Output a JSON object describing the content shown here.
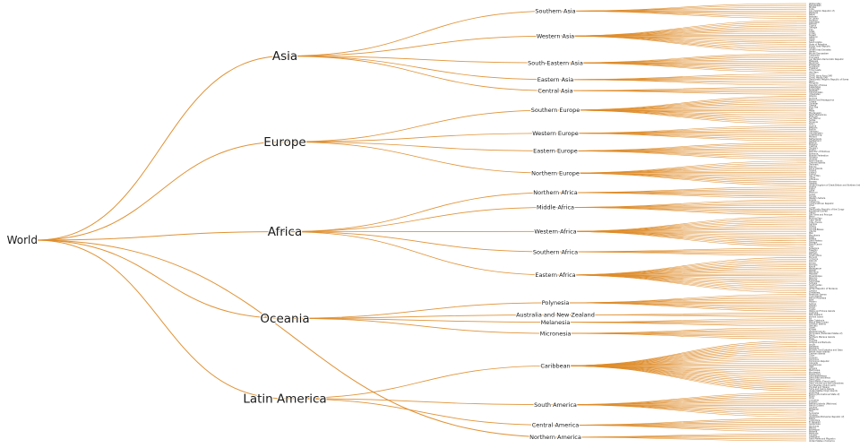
{
  "chart_data": {
    "type": "tree",
    "subtype": "dendrogram-left-to-right",
    "layout_hints": {
      "orientation": "horizontal",
      "levels": [
        "world",
        "continent-region",
        "subregion",
        "country"
      ],
      "leaves_aligned_right": true,
      "grid": false,
      "legend": false
    },
    "colors": {
      "link": "#de8c2a",
      "label": "#1a1a1a",
      "leaf_label": "#3a3a3a",
      "background": "#ffffff"
    },
    "root": {
      "name": "World",
      "children": [
        {
          "name": "Asia",
          "children": [
            {
              "name": "Southern Asia",
              "children": [
                "Afghanistan",
                "Bangladesh",
                "Bhutan",
                "India",
                "Iran (Islamic Republic of)",
                "Maldives",
                "Nepal",
                "Pakistan",
                "Sri Lanka"
              ]
            },
            {
              "name": "Western Asia",
              "children": [
                "Armenia",
                "Azerbaijan",
                "Bahrain",
                "Cyprus",
                "Georgia",
                "Iraq",
                "Israel",
                "Jordan",
                "Kuwait",
                "Lebanon",
                "Oman",
                "Qatar",
                "Saudi Arabia",
                "State of Palestine",
                "Syrian Arab Republic",
                "Turkey",
                "United Arab Emirates",
                "Yemen"
              ]
            },
            {
              "name": "South-Eastern Asia",
              "children": [
                "Brunei Darussalam",
                "Cambodia",
                "Indonesia",
                "Lao People's Democratic Republic",
                "Malaysia",
                "Myanmar",
                "Philippines",
                "Singapore",
                "Thailand",
                "Timor-Leste",
                "Viet Nam"
              ]
            },
            {
              "name": "Eastern Asia",
              "children": [
                "China",
                "China, Hong Kong SAR",
                "China, Macao SAR",
                "Democratic People's Republic of Korea",
                "Japan",
                "Mongolia",
                "Republic of Korea"
              ]
            },
            {
              "name": "Central Asia",
              "children": [
                "Kazakhstan",
                "Kyrgyzstan",
                "Tajikistan",
                "Turkmenistan",
                "Uzbekistan"
              ]
            }
          ]
        },
        {
          "name": "Europe",
          "children": [
            {
              "name": "Southern Europe",
              "children": [
                "Albania",
                "Andorra",
                "Bosnia and Herzegovina",
                "Croatia",
                "Gibraltar",
                "Greece",
                "Holy See",
                "Italy",
                "Malta",
                "Montenegro",
                "North Macedonia",
                "Portugal",
                "San Marino",
                "Serbia",
                "Slovenia",
                "Spain"
              ]
            },
            {
              "name": "Western Europe",
              "children": [
                "Austria",
                "Belgium",
                "France",
                "Germany",
                "Liechtenstein",
                "Luxembourg",
                "Monaco",
                "Netherlands",
                "Switzerland"
              ]
            },
            {
              "name": "Eastern Europe",
              "children": [
                "Belarus",
                "Bulgaria",
                "Czechia",
                "Hungary",
                "Poland",
                "Republic of Moldova",
                "Romania",
                "Russian Federation",
                "Slovakia",
                "Ukraine"
              ]
            },
            {
              "name": "Northern Europe",
              "children": [
                "Åland Islands",
                "Channel Islands",
                "Denmark",
                "Estonia",
                "Faroe Islands",
                "Finland",
                "Iceland",
                "Ireland",
                "Isle of Man",
                "Latvia",
                "Lithuania",
                "Norway",
                "Sweden",
                "United Kingdom of Great Britain and Northern Ireland"
              ]
            }
          ]
        },
        {
          "name": "Africa",
          "children": [
            {
              "name": "Northern Africa",
              "children": [
                "Algeria",
                "Egypt",
                "Libya",
                "Morocco",
                "Sudan",
                "Tunisia",
                "Western Sahara"
              ]
            },
            {
              "name": "Middle Africa",
              "children": [
                "Angola",
                "Cameroon",
                "Central African Republic",
                "Chad",
                "Congo",
                "Democratic Republic of the Congo",
                "Equatorial Guinea",
                "Gabon",
                "Sao Tome and Principe"
              ]
            },
            {
              "name": "Western Africa",
              "children": [
                "Benin",
                "Burkina Faso",
                "Cabo Verde",
                "Côte d'Ivoire",
                "Gambia",
                "Ghana",
                "Guinea",
                "Guinea-Bissau",
                "Liberia",
                "Mali",
                "Mauritania",
                "Niger",
                "Nigeria",
                "Saint Helena",
                "Senegal",
                "Sierra Leone",
                "Togo"
              ]
            },
            {
              "name": "Southern Africa",
              "children": [
                "Botswana",
                "Eswatini",
                "Lesotho",
                "Namibia",
                "South Africa"
              ]
            },
            {
              "name": "Eastern Africa",
              "children": [
                "Burundi",
                "Comoros",
                "Djibouti",
                "Eritrea",
                "Ethiopia",
                "Kenya",
                "Madagascar",
                "Malawi",
                "Mauritius",
                "Mayotte",
                "Mozambique",
                "Réunion",
                "Rwanda",
                "Seychelles",
                "Somalia",
                "South Sudan",
                "Uganda",
                "United Republic of Tanzania",
                "Zambia",
                "Zimbabwe"
              ]
            }
          ]
        },
        {
          "name": "Oceania",
          "children": [
            {
              "name": "Polynesia",
              "children": [
                "American Samoa",
                "Cook Islands",
                "French Polynesia",
                "Niue",
                "Pitcairn",
                "Samoa",
                "Tokelau",
                "Tonga",
                "Tuvalu",
                "Wallis and Futuna Islands"
              ]
            },
            {
              "name": "Australia and New Zealand",
              "children": [
                "Australia",
                "New Zealand",
                "Norfolk Island"
              ]
            },
            {
              "name": "Melanesia",
              "children": [
                "Fiji",
                "New Caledonia",
                "Papua New Guinea",
                "Solomon Islands",
                "Vanuatu"
              ]
            },
            {
              "name": "Micronesia",
              "children": [
                "Guam",
                "Kiribati",
                "Marshall Islands",
                "Micronesia (Federated States of)",
                "Nauru",
                "Northern Mariana Islands",
                "Palau"
              ]
            }
          ]
        },
        {
          "name": "Latin America",
          "children": [
            {
              "name": "Caribbean",
              "children": [
                "Anguilla",
                "Antigua and Barbuda",
                "Aruba",
                "Bahamas",
                "Barbados",
                "Bonaire, Sint Eustatius and Saba",
                "British Virgin Islands",
                "Cayman Islands",
                "Cuba",
                "Curaçao",
                "Dominica",
                "Dominican Republic",
                "Grenada",
                "Guadeloupe",
                "Haiti",
                "Jamaica",
                "Martinique",
                "Montserrat",
                "Puerto Rico",
                "Saint Barthélemy",
                "Saint Kitts and Nevis",
                "Saint Lucia",
                "Saint Martin (French part)",
                "Saint Vincent and the Grenadines",
                "Sint Maarten (Dutch part)",
                "Trinidad and Tobago",
                "Turks and Caicos Islands",
                "United States Virgin Islands"
              ]
            },
            {
              "name": "South America",
              "children": [
                "Argentina",
                "Bolivia (Plurinational State of)",
                "Brazil",
                "Chile",
                "Colombia",
                "Ecuador",
                "Falkland Islands (Malvinas)",
                "French Guiana",
                "Guyana",
                "Paraguay",
                "Peru",
                "Suriname",
                "Uruguay",
                "Venezuela (Bolivarian Republic of)"
              ]
            },
            {
              "name": "Central America",
              "children": [
                "Belize",
                "Costa Rica",
                "El Salvador",
                "Guatemala",
                "Honduras",
                "Mexico",
                "Nicaragua",
                "Panama"
              ]
            }
          ]
        },
        {
          "name": "Northern America",
          "children": [
            "Bermuda",
            "Canada",
            "Greenland",
            "Saint Pierre and Miquelon",
            "United States of America"
          ]
        }
      ]
    }
  }
}
